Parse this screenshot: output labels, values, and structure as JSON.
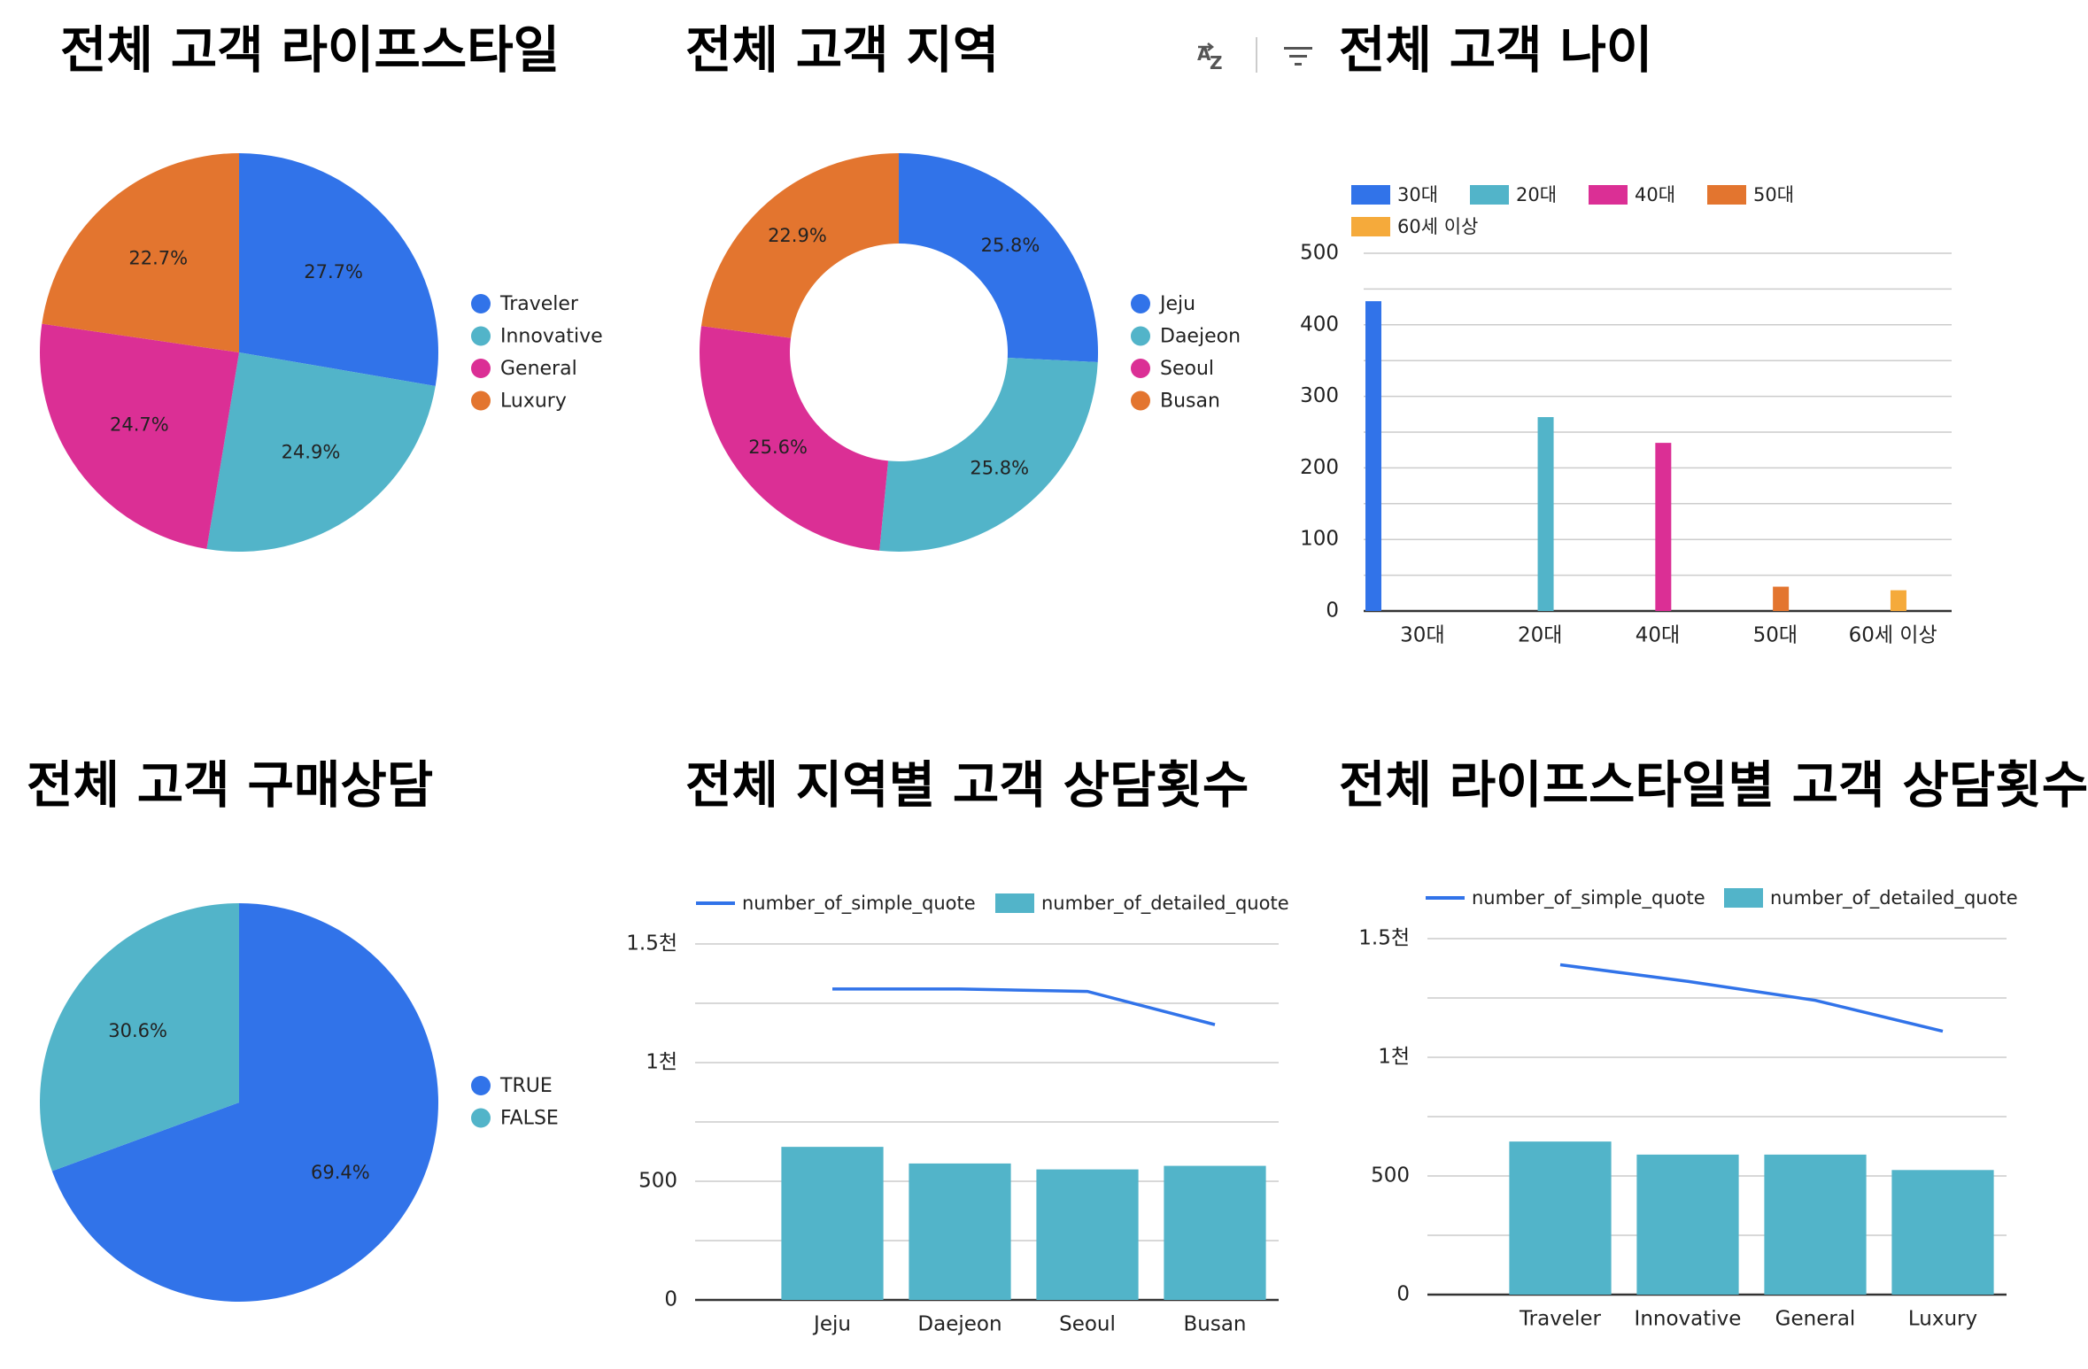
{
  "colors": {
    "blue": "#3173E9",
    "teal": "#52B4C9",
    "pink": "#DB2F95",
    "orange": "#E3752F",
    "amber": "#F5AA3B",
    "axis": "#333333",
    "grid": "#CCCCCC",
    "text": "#222222"
  },
  "toolbar": {
    "sort_icon": "sort-az-icon",
    "filter_icon": "filter-icon"
  },
  "chart_data": [
    {
      "id": "lifestyle_pie",
      "type": "pie",
      "title": "전체 고객 라이프스타일",
      "categories": [
        "Traveler",
        "Innovative",
        "General",
        "Luxury"
      ],
      "values": [
        27.7,
        24.9,
        24.7,
        22.7
      ],
      "labels": [
        "27.7%",
        "24.9%",
        "24.7%",
        "22.7%"
      ],
      "colors": [
        "#3173E9",
        "#52B4C9",
        "#DB2F95",
        "#E3752F"
      ],
      "legend": "right"
    },
    {
      "id": "region_donut",
      "type": "pie",
      "donut": true,
      "title": "전체 고객 지역",
      "categories": [
        "Jeju",
        "Daejeon",
        "Seoul",
        "Busan"
      ],
      "values": [
        25.8,
        25.8,
        25.6,
        22.9
      ],
      "labels": [
        "25.8%",
        "25.8%",
        "25.6%",
        "22.9%"
      ],
      "colors": [
        "#3173E9",
        "#52B4C9",
        "#DB2F95",
        "#E3752F"
      ],
      "legend": "right"
    },
    {
      "id": "age_bar",
      "type": "bar",
      "title": "전체 고객 나이",
      "categories": [
        "30대",
        "20대",
        "40대",
        "50대",
        "60세 이상"
      ],
      "values": [
        433,
        271,
        235,
        34,
        29
      ],
      "colors": [
        "#3173E9",
        "#52B4C9",
        "#DB2F95",
        "#E3752F",
        "#F5AA3B"
      ],
      "yticks": [
        "0",
        "100",
        "200",
        "300",
        "400",
        "500"
      ],
      "ylim": [
        0,
        500
      ],
      "grid": true,
      "legend": "top"
    },
    {
      "id": "purchase_pie",
      "type": "pie",
      "title": "전체 고객 구매상담",
      "categories": [
        "TRUE",
        "FALSE"
      ],
      "values": [
        69.4,
        30.6
      ],
      "labels": [
        "69.4%",
        "30.6%"
      ],
      "colors": [
        "#3173E9",
        "#52B4C9"
      ],
      "legend": "right"
    },
    {
      "id": "region_combo",
      "type": "bar",
      "title": "전체 지역별 고객 상담횟수",
      "categories": [
        "Jeju",
        "Daejeon",
        "Seoul",
        "Busan"
      ],
      "series": [
        {
          "name": "number_of_simple_quote",
          "kind": "line",
          "color": "#3173E9",
          "values": [
            1310,
            1310,
            1300,
            1160
          ]
        },
        {
          "name": "number_of_detailed_quote",
          "kind": "bar",
          "color": "#52B4C9",
          "values": [
            645,
            575,
            550,
            565
          ]
        }
      ],
      "yticks": [
        "0",
        "500",
        "1천",
        "1.5천"
      ],
      "ylim": [
        0,
        1500
      ],
      "grid": true,
      "legend": "top"
    },
    {
      "id": "lifestyle_combo",
      "type": "bar",
      "title": "전체 라이프스타일별 고객 상담횟수",
      "categories": [
        "Traveler",
        "Innovative",
        "General",
        "Luxury"
      ],
      "series": [
        {
          "name": "number_of_simple_quote",
          "kind": "line",
          "color": "#3173E9",
          "values": [
            1390,
            1320,
            1240,
            1110
          ]
        },
        {
          "name": "number_of_detailed_quote",
          "kind": "bar",
          "color": "#52B4C9",
          "values": [
            645,
            590,
            590,
            525
          ]
        }
      ],
      "yticks": [
        "0",
        "500",
        "1천",
        "1.5천"
      ],
      "ylim": [
        0,
        1500
      ],
      "grid": true,
      "legend": "top"
    }
  ]
}
